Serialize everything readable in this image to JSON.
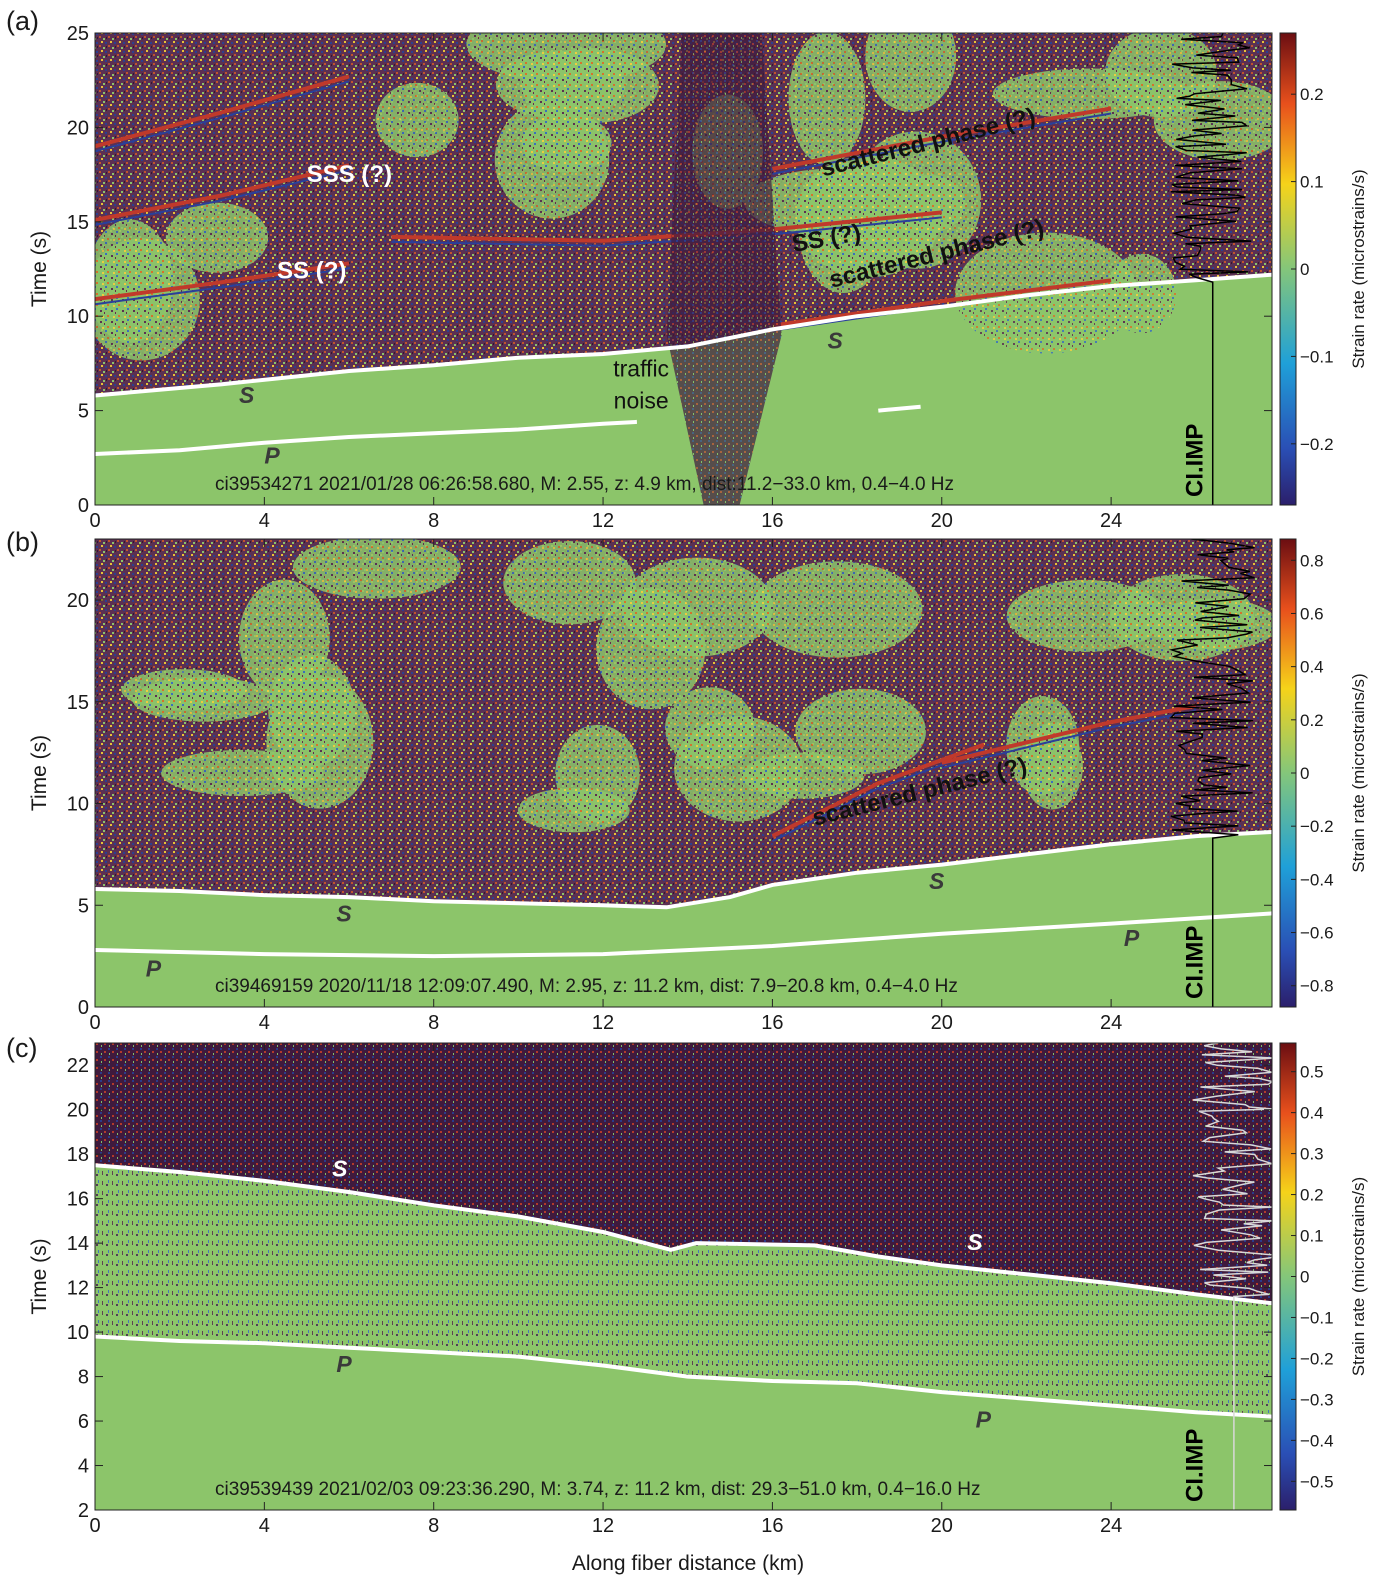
{
  "colors": {
    "background_green": "#8cc56a",
    "noise_purple": "#4a1e45",
    "pick_white": "#ffffff",
    "text_dark": "#3a3a3a"
  },
  "chart_data": [
    {
      "type": "heatmap",
      "panel_label": "(a)",
      "caption": "ci39534271 2021/01/28 06:26:58.680, M: 2.55, z: 4.9 km, dist:11.2−33.0 km, 0.4−4.0 Hz",
      "xlabel": "",
      "ylabel": "Time (s)",
      "xlim": [
        0,
        27.8
      ],
      "ylim": [
        0,
        25
      ],
      "xticks": [
        0,
        4,
        8,
        12,
        16,
        20,
        24
      ],
      "yticks": [
        0,
        5,
        10,
        15,
        20,
        25
      ],
      "colorbar": {
        "label": "Strain rate (microstrains/s)",
        "range": [
          -0.27,
          0.27
        ],
        "ticks": [
          -0.2,
          -0.1,
          0,
          0.1,
          0.2
        ],
        "tick_labels": [
          "−0.2",
          "−0.1",
          "0",
          "0.1",
          "0.2"
        ]
      },
      "station_trace": {
        "label": "CI.IMP",
        "x": 26.3,
        "color": "#000000",
        "onset_time": 11.8,
        "waveform_x": 26.4
      },
      "dark_region": "above_s",
      "s_pick": [
        [
          0,
          5.8
        ],
        [
          3,
          6.4
        ],
        [
          6,
          7.1
        ],
        [
          8,
          7.4
        ],
        [
          10,
          7.8
        ],
        [
          12,
          8.0
        ],
        [
          14,
          8.4
        ],
        [
          16,
          9.3
        ],
        [
          18,
          10.0
        ],
        [
          20,
          10.5
        ],
        [
          22,
          11.1
        ],
        [
          24,
          11.6
        ],
        [
          26,
          11.9
        ],
        [
          27.8,
          12.2
        ]
      ],
      "p_pick": [
        [
          0,
          2.7
        ],
        [
          2,
          2.9
        ],
        [
          4,
          3.3
        ],
        [
          6,
          3.6
        ],
        [
          8,
          3.8
        ],
        [
          10,
          4.0
        ],
        [
          12,
          4.3
        ],
        [
          12.8,
          4.4
        ]
      ],
      "p_pick_extra": [
        [
          18.5,
          5.0
        ],
        [
          19.5,
          5.2
        ]
      ],
      "coherent_phases": [
        {
          "points": [
            [
              0,
              10.9
            ],
            [
              3,
              11.8
            ],
            [
              6,
              12.8
            ]
          ],
          "color": "#c0392b"
        },
        {
          "points": [
            [
              0,
              15.1
            ],
            [
              3,
              16.4
            ],
            [
              6,
              18.0
            ]
          ],
          "color": "#c0392b"
        },
        {
          "points": [
            [
              0,
              19.0
            ],
            [
              3,
              20.8
            ],
            [
              6,
              22.7
            ]
          ],
          "color": "#c0392b"
        },
        {
          "points": [
            [
              7,
              14.2
            ],
            [
              12,
              14.0
            ],
            [
              16,
              14.6
            ],
            [
              20,
              15.5
            ]
          ],
          "color": "#c0392b"
        },
        {
          "points": [
            [
              16,
              17.8
            ],
            [
              20,
              19.5
            ],
            [
              24,
              21.0
            ]
          ],
          "color": "#c0392b"
        },
        {
          "points": [
            [
              16,
              9.5
            ],
            [
              20,
              10.8
            ],
            [
              24,
              11.9
            ]
          ],
          "color": "#c0392b"
        }
      ],
      "annotations": [
        {
          "text": "SSS (?)",
          "x": 5.0,
          "y": 17.1,
          "color": "#ffffff",
          "rotate": 0
        },
        {
          "text": "SS (?)",
          "x": 4.3,
          "y": 12.0,
          "color": "#ffffff",
          "rotate": 0
        },
        {
          "text": "scattered  phase (?)",
          "x": 17.2,
          "y": 17.4,
          "color": "#111111",
          "rotate": -14
        },
        {
          "text": "SS (?)",
          "x": 16.5,
          "y": 13.4,
          "color": "#111111",
          "rotate": -10
        },
        {
          "text": "scattered  phase (?)",
          "x": 17.4,
          "y": 11.5,
          "color": "#111111",
          "rotate": -14
        },
        {
          "text": "traffic",
          "x": 12.9,
          "y": 6.8,
          "color": "#111111",
          "rotate": 0,
          "plain": true
        },
        {
          "text": "noise",
          "x": 12.9,
          "y": 5.1,
          "color": "#111111",
          "rotate": 0,
          "plain": true
        }
      ],
      "phase_labels": [
        {
          "text": "S",
          "x": 3.4,
          "y": 5.4
        },
        {
          "text": "S",
          "x": 17.3,
          "y": 8.3
        },
        {
          "text": "P",
          "x": 4.0,
          "y": 2.2
        }
      ]
    },
    {
      "type": "heatmap",
      "panel_label": "(b)",
      "caption": "ci39469159 2020/11/18 12:09:07.490, M: 2.95, z: 11.2 km, dist: 7.9−20.8 km, 0.4−4.0 Hz",
      "xlabel": "",
      "ylabel": "Time (s)",
      "xlim": [
        0,
        27.8
      ],
      "ylim": [
        0,
        23
      ],
      "xticks": [
        0,
        4,
        8,
        12,
        16,
        20,
        24
      ],
      "yticks": [
        0,
        5,
        10,
        15,
        20
      ],
      "colorbar": {
        "label": "Strain rate (microstrains/s)",
        "range": [
          -0.88,
          0.88
        ],
        "ticks": [
          -0.8,
          -0.6,
          -0.4,
          -0.2,
          0,
          0.2,
          0.4,
          0.6,
          0.8
        ],
        "tick_labels": [
          "−0.8",
          "−0.6",
          "−0.4",
          "−0.2",
          "0",
          "0.2",
          "0.4",
          "0.6",
          "0.8"
        ]
      },
      "station_trace": {
        "label": "CI.IMP",
        "x": 26.3,
        "color": "#000000",
        "onset_time": 8.3,
        "waveform_x": 26.4
      },
      "dark_region": "above_s",
      "s_pick": [
        [
          0,
          5.8
        ],
        [
          2,
          5.7
        ],
        [
          4,
          5.5
        ],
        [
          6,
          5.4
        ],
        [
          8,
          5.2
        ],
        [
          10,
          5.1
        ],
        [
          12,
          5.0
        ],
        [
          13.5,
          4.9
        ],
        [
          15,
          5.4
        ],
        [
          16,
          6.0
        ],
        [
          18,
          6.6
        ],
        [
          20,
          7.0
        ],
        [
          22,
          7.5
        ],
        [
          24,
          8.0
        ],
        [
          26,
          8.4
        ],
        [
          27.8,
          8.6
        ]
      ],
      "p_pick": [
        [
          0,
          2.8
        ],
        [
          4,
          2.6
        ],
        [
          8,
          2.5
        ],
        [
          12,
          2.6
        ],
        [
          16,
          3.0
        ],
        [
          20,
          3.6
        ],
        [
          24,
          4.1
        ],
        [
          27.8,
          4.6
        ]
      ],
      "p_pick_extra": [],
      "coherent_phases": [
        {
          "points": [
            [
              16,
              8.4
            ],
            [
              18.5,
              11.0
            ],
            [
              21,
              12.9
            ]
          ],
          "color": "#c0392b"
        },
        {
          "points": [
            [
              20,
              12.0
            ],
            [
              24,
              14.0
            ],
            [
              26,
              14.8
            ]
          ],
          "color": "#c0392b"
        }
      ],
      "annotations": [
        {
          "text": "scattered  phase (?)",
          "x": 17.0,
          "y": 8.9,
          "color": "#111111",
          "rotate": -14
        }
      ],
      "phase_labels": [
        {
          "text": "S",
          "x": 5.7,
          "y": 4.2
        },
        {
          "text": "S",
          "x": 19.7,
          "y": 5.8
        },
        {
          "text": "P",
          "x": 24.3,
          "y": 3.0
        },
        {
          "text": "P",
          "x": 1.2,
          "y": 1.5
        }
      ]
    },
    {
      "type": "heatmap",
      "panel_label": "(c)",
      "caption": "ci39539439 2021/02/03 09:23:36.290, M: 3.74, z: 11.2 km, dist: 29.3−51.0 km, 0.4−16.0 Hz",
      "xlabel": "Along fiber distance (km)",
      "ylabel": "Time (s)",
      "xlim": [
        0,
        27.8
      ],
      "ylim": [
        2,
        23
      ],
      "xticks": [
        0,
        4,
        8,
        12,
        16,
        20,
        24
      ],
      "yticks": [
        2,
        4,
        6,
        8,
        10,
        12,
        14,
        16,
        18,
        20,
        22
      ],
      "colorbar": {
        "label": "Strain rate (microstrains/s)",
        "range": [
          -0.57,
          0.57
        ],
        "ticks": [
          -0.5,
          -0.4,
          -0.3,
          -0.2,
          -0.1,
          0,
          0.1,
          0.2,
          0.3,
          0.4,
          0.5
        ],
        "tick_labels": [
          "−0.5",
          "−0.4",
          "−0.3",
          "−0.2",
          "−0.1",
          "0",
          "0.1",
          "0.2",
          "0.3",
          "0.4",
          "0.5"
        ]
      },
      "station_trace": {
        "label": "CI.IMP",
        "x": 26.3,
        "color": "#d8d8d8",
        "onset_time": 11.6,
        "waveform_x": 26.9
      },
      "dark_region": "above_s_full",
      "s_pick": [
        [
          0,
          17.5
        ],
        [
          2,
          17.2
        ],
        [
          4,
          16.8
        ],
        [
          6,
          16.3
        ],
        [
          8,
          15.7
        ],
        [
          10,
          15.2
        ],
        [
          12,
          14.5
        ],
        [
          13.6,
          13.7
        ],
        [
          14.2,
          14.0
        ],
        [
          17,
          13.9
        ],
        [
          18.5,
          13.4
        ],
        [
          20,
          13.0
        ],
        [
          22,
          12.6
        ],
        [
          24,
          12.2
        ],
        [
          26,
          11.7
        ],
        [
          27.8,
          11.3
        ]
      ],
      "p_pick": [
        [
          0,
          9.8
        ],
        [
          2,
          9.6
        ],
        [
          4,
          9.5
        ],
        [
          6,
          9.3
        ],
        [
          8,
          9.1
        ],
        [
          10,
          8.9
        ],
        [
          12,
          8.5
        ],
        [
          14,
          8.0
        ],
        [
          16,
          7.8
        ],
        [
          18,
          7.7
        ],
        [
          20,
          7.3
        ],
        [
          22,
          7.0
        ],
        [
          24,
          6.7
        ],
        [
          26,
          6.4
        ],
        [
          27.8,
          6.2
        ]
      ],
      "p_pick_extra": [],
      "coherent_phases": [],
      "annotations": [],
      "phase_labels": [
        {
          "text": "S",
          "x": 5.6,
          "y": 17.0,
          "color": "#ffffff"
        },
        {
          "text": "S",
          "x": 20.6,
          "y": 13.7,
          "color": "#ffffff"
        },
        {
          "text": "P",
          "x": 5.7,
          "y": 8.2
        },
        {
          "text": "P",
          "x": 20.8,
          "y": 5.7
        }
      ]
    }
  ]
}
